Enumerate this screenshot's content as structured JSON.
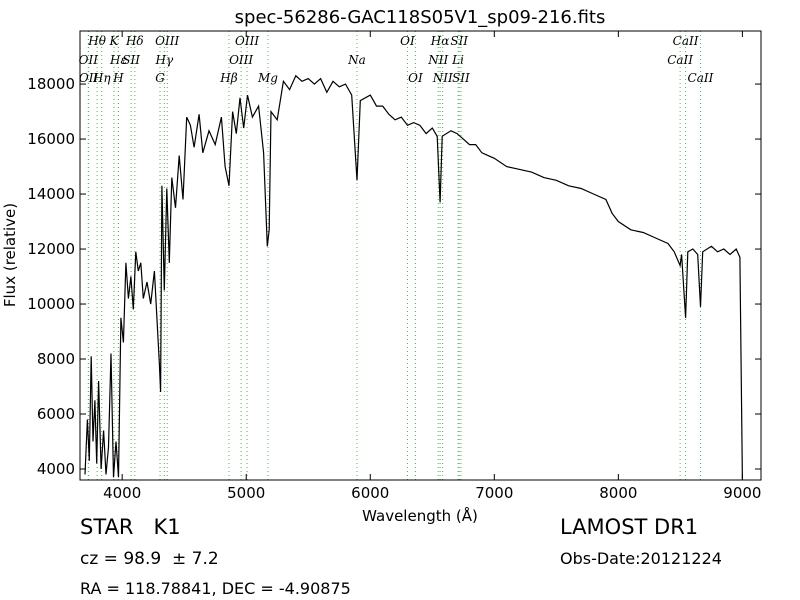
{
  "chart_data": {
    "type": "line",
    "title": "spec-56286-GAC118S05V1_sp09-216.fits",
    "x_label": "Wavelength (Å)",
    "y_label": "Flux (relative)",
    "xlim": [
      3660,
      9150
    ],
    "ylim": [
      3600,
      19930
    ],
    "xticks": [
      4000,
      5000,
      6000,
      7000,
      8000,
      9000
    ],
    "yticks": [
      4000,
      6000,
      8000,
      10000,
      12000,
      14000,
      16000,
      18000
    ],
    "line_color": "#000000",
    "marker_color": "#55b055",
    "x": [
      3700,
      3720,
      3735,
      3750,
      3765,
      3780,
      3795,
      3810,
      3830,
      3850,
      3870,
      3890,
      3910,
      3930,
      3950,
      3970,
      3990,
      4010,
      4030,
      4050,
      4070,
      4090,
      4110,
      4130,
      4150,
      4170,
      4200,
      4230,
      4260,
      4280,
      4300,
      4310,
      4320,
      4340,
      4360,
      4380,
      4400,
      4430,
      4460,
      4490,
      4520,
      4550,
      4580,
      4620,
      4650,
      4700,
      4750,
      4800,
      4830,
      4861,
      4890,
      4920,
      4950,
      4980,
      5010,
      5050,
      5100,
      5140,
      5170,
      5185,
      5200,
      5250,
      5300,
      5350,
      5400,
      5450,
      5500,
      5550,
      5600,
      5650,
      5700,
      5750,
      5800,
      5850,
      5893,
      5920,
      6000,
      6050,
      6100,
      6150,
      6200,
      6250,
      6300,
      6350,
      6400,
      6450,
      6500,
      6540,
      6563,
      6580,
      6650,
      6700,
      6750,
      6800,
      6850,
      6900,
      6950,
      7000,
      7100,
      7200,
      7300,
      7400,
      7500,
      7600,
      7700,
      7800,
      7900,
      7950,
      8000,
      8100,
      8200,
      8300,
      8400,
      8450,
      8498,
      8510,
      8542,
      8560,
      8600,
      8640,
      8662,
      8680,
      8750,
      8800,
      8850,
      8900,
      8950,
      8980,
      9000
    ],
    "series": [
      {
        "name": "flux",
        "values": [
          3800,
          5800,
          4300,
          8100,
          5000,
          6500,
          4200,
          7200,
          4000,
          5400,
          3800,
          4800,
          8200,
          3700,
          5000,
          3700,
          9500,
          8600,
          11500,
          10200,
          11000,
          9800,
          11900,
          11200,
          11500,
          10200,
          10800,
          10000,
          11200,
          9500,
          7800,
          6800,
          14300,
          10500,
          14200,
          11500,
          14600,
          13500,
          15400,
          13800,
          16800,
          16500,
          15700,
          16900,
          15500,
          16300,
          15800,
          16800,
          15000,
          14300,
          17000,
          16200,
          17500,
          16400,
          17600,
          16800,
          17200,
          15500,
          12100,
          12700,
          17000,
          16700,
          18100,
          17800,
          18300,
          18100,
          18200,
          18000,
          18200,
          17700,
          18100,
          17900,
          18000,
          17600,
          14500,
          17400,
          17600,
          17200,
          17200,
          16900,
          16700,
          16800,
          16500,
          16600,
          16500,
          16200,
          16400,
          16100,
          13700,
          16100,
          16300,
          16200,
          16000,
          15800,
          15800,
          15500,
          15400,
          15300,
          15000,
          14900,
          14800,
          14600,
          14500,
          14300,
          14200,
          14000,
          13800,
          13300,
          13000,
          12700,
          12600,
          12400,
          12200,
          11900,
          11400,
          11800,
          9500,
          11900,
          12000,
          11800,
          9900,
          11900,
          12100,
          11900,
          12000,
          11800,
          12000,
          11700,
          3600
        ]
      }
    ],
    "spectral_lines": [
      [
        {
          "label": "Hθ",
          "x": 3798
        },
        {
          "label": "K",
          "x": 3934
        },
        {
          "label": "Hδ",
          "x": 4102
        },
        {
          "label": "OIII",
          "x": 4363
        },
        {
          "label": "OIII",
          "x": 5007
        },
        {
          "label": "OI",
          "x": 6300
        },
        {
          "label": "Hα",
          "x": 6563
        },
        {
          "label": "SII",
          "x": 6717
        },
        {
          "label": "CaII",
          "x": 8542
        }
      ],
      [
        {
          "label": "OII",
          "x": 3727
        },
        {
          "label": "Hε",
          "x": 3970
        },
        {
          "label": "SII",
          "x": 4072
        },
        {
          "label": "Hγ",
          "x": 4340
        },
        {
          "label": "OIII",
          "x": 4959
        },
        {
          "label": "Na",
          "x": 5893
        },
        {
          "label": "NII",
          "x": 6548
        },
        {
          "label": "Li",
          "x": 6708
        },
        {
          "label": "CaII",
          "x": 8498
        }
      ],
      [
        {
          "label": "OII",
          "x": 3729
        },
        {
          "label": "Hη",
          "x": 3835
        },
        {
          "label": "H",
          "x": 3969
        },
        {
          "label": "G",
          "x": 4305
        },
        {
          "label": "Hβ",
          "x": 4861
        },
        {
          "label": "Mg",
          "x": 5175
        },
        {
          "label": "OI",
          "x": 6364
        },
        {
          "label": "NII",
          "x": 6584
        },
        {
          "label": "SII",
          "x": 6731
        },
        {
          "label": "CaII",
          "x": 8662
        }
      ]
    ],
    "class_label": "STAR   K1",
    "survey_label": "LAMOST DR1",
    "redshift_label": "cz = 98.9  ± 7.2",
    "date_label": "Obs-Date:20121224",
    "coord_label": "RA = 118.78841, DEC = -4.90875"
  }
}
